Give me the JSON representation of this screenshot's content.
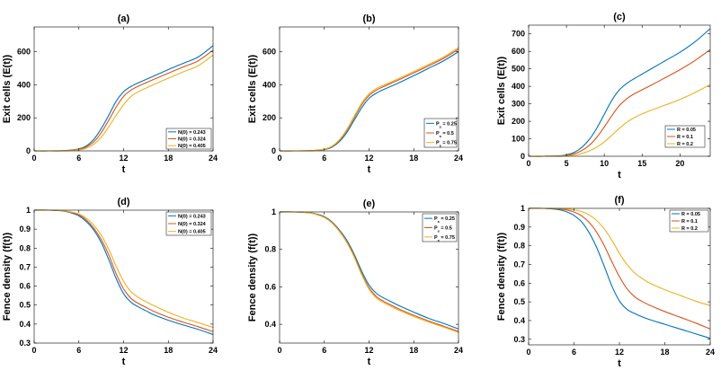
{
  "figure": {
    "title": ""
  },
  "chart_data": [
    {
      "type": "line",
      "title": "(a)",
      "xlabel": "t",
      "ylabel": "Exit cells (E(t))",
      "xlim": [
        0,
        24
      ],
      "ylim": [
        0,
        750
      ],
      "xticks": [
        0,
        6,
        12,
        18,
        24
      ],
      "yticks": [
        0,
        200,
        400,
        600
      ],
      "legend_position": "bottom-right",
      "x": [
        0,
        2,
        4,
        6,
        7,
        8,
        9,
        10,
        11,
        12,
        13,
        14,
        15,
        16,
        18,
        20,
        22,
        24
      ],
      "series": [
        {
          "name": "N(0) = 0.243",
          "color": "#0072BD",
          "values": [
            0,
            0,
            1,
            12,
            30,
            70,
            135,
            215,
            300,
            358,
            390,
            412,
            432,
            452,
            492,
            530,
            568,
            637
          ]
        },
        {
          "name": "N(0) = 0.324",
          "color": "#D95319",
          "values": [
            0,
            0,
            1,
            9,
            24,
            55,
            110,
            185,
            265,
            330,
            368,
            392,
            412,
            432,
            470,
            508,
            545,
            610
          ]
        },
        {
          "name": "N(0) = 0.405",
          "color": "#EDB120",
          "values": [
            0,
            0,
            1,
            6,
            16,
            40,
            82,
            145,
            215,
            280,
            330,
            358,
            380,
            400,
            440,
            478,
            515,
            580
          ]
        }
      ]
    },
    {
      "type": "line",
      "title": "(b)",
      "xlabel": "t",
      "ylabel": "Exit cells (E(t))",
      "xlim": [
        0,
        24
      ],
      "ylim": [
        0,
        750
      ],
      "xticks": [
        0,
        6,
        12,
        18,
        24
      ],
      "yticks": [
        0,
        200,
        400,
        600
      ],
      "legend_position": "bottom-right",
      "x": [
        0,
        2,
        4,
        6,
        7,
        8,
        9,
        10,
        11,
        12,
        13,
        14,
        15,
        16,
        18,
        20,
        22,
        24
      ],
      "series": [
        {
          "name": "P_s = 0.25",
          "color": "#0072BD",
          "values": [
            0,
            0,
            1,
            8,
            22,
            55,
            110,
            185,
            260,
            318,
            350,
            372,
            392,
            412,
            455,
            500,
            545,
            600
          ]
        },
        {
          "name": "P_s = 0.5",
          "color": "#D95319",
          "values": [
            0,
            0,
            1,
            10,
            26,
            62,
            122,
            200,
            278,
            335,
            368,
            390,
            410,
            430,
            472,
            515,
            560,
            615
          ]
        },
        {
          "name": "P_s = 0.75",
          "color": "#EDB120",
          "values": [
            0,
            0,
            1,
            11,
            28,
            66,
            128,
            208,
            288,
            345,
            378,
            398,
            418,
            438,
            480,
            523,
            568,
            625
          ]
        }
      ]
    },
    {
      "type": "line",
      "title": "(c)",
      "xlabel": "t",
      "ylabel": "Exit cells (E(t))",
      "xlim": [
        0,
        24
      ],
      "ylim": [
        0,
        750
      ],
      "xticks": [
        0,
        5,
        10,
        15,
        20
      ],
      "yticks": [
        0,
        100,
        200,
        300,
        400,
        500,
        600,
        700
      ],
      "legend_position": "bottom-right",
      "x": [
        0,
        2,
        4,
        5,
        6,
        7,
        8,
        9,
        10,
        11,
        12,
        13,
        14,
        15,
        16,
        18,
        20,
        22,
        24
      ],
      "series": [
        {
          "name": "R = 0.05",
          "color": "#0072BD",
          "values": [
            0,
            0,
            2,
            8,
            22,
            50,
            95,
            160,
            240,
            320,
            380,
            418,
            445,
            470,
            495,
            545,
            595,
            655,
            730
          ]
        },
        {
          "name": "R = 0.1",
          "color": "#D95319",
          "values": [
            0,
            0,
            1,
            5,
            14,
            32,
            62,
            108,
            168,
            232,
            290,
            330,
            358,
            380,
            402,
            448,
            495,
            548,
            610
          ]
        },
        {
          "name": "R = 0.2",
          "color": "#EDB120",
          "values": [
            0,
            0,
            1,
            3,
            7,
            15,
            30,
            52,
            82,
            120,
            160,
            195,
            222,
            242,
            260,
            292,
            325,
            365,
            410
          ]
        }
      ]
    },
    {
      "type": "line",
      "title": "(d)",
      "xlabel": "t",
      "ylabel": "Fence density (f(t))",
      "xlim": [
        0,
        24
      ],
      "ylim": [
        0.3,
        1.0
      ],
      "xticks": [
        0,
        6,
        12,
        18,
        24
      ],
      "yticks": [
        0.3,
        0.4,
        0.5,
        0.6,
        0.7,
        0.8,
        0.9,
        1
      ],
      "legend_position": "top-right",
      "x": [
        0,
        2,
        4,
        5,
        6,
        7,
        8,
        9,
        10,
        11,
        12,
        13,
        14,
        15,
        16,
        18,
        20,
        22,
        24
      ],
      "series": [
        {
          "name": "N(0) = 0.243",
          "color": "#0072BD",
          "values": [
            1.0,
            1.0,
            0.995,
            0.985,
            0.97,
            0.94,
            0.895,
            0.83,
            0.74,
            0.64,
            0.56,
            0.515,
            0.49,
            0.47,
            0.45,
            0.42,
            0.395,
            0.372,
            0.345
          ]
        },
        {
          "name": "N(0) = 0.324",
          "color": "#D95319",
          "values": [
            1.0,
            1.0,
            0.996,
            0.988,
            0.975,
            0.948,
            0.905,
            0.845,
            0.765,
            0.665,
            0.585,
            0.535,
            0.508,
            0.488,
            0.468,
            0.436,
            0.41,
            0.386,
            0.36
          ]
        },
        {
          "name": "N(0) = 0.405",
          "color": "#EDB120",
          "values": [
            1.0,
            1.0,
            0.997,
            0.99,
            0.98,
            0.958,
            0.92,
            0.868,
            0.795,
            0.705,
            0.625,
            0.57,
            0.54,
            0.518,
            0.498,
            0.462,
            0.432,
            0.408,
            0.382
          ]
        }
      ]
    },
    {
      "type": "line",
      "title": "(e)",
      "xlabel": "t",
      "ylabel": "Fence density (f(t))",
      "xlim": [
        0,
        24
      ],
      "ylim": [
        0.3,
        1.0
      ],
      "xticks": [
        0,
        6,
        12,
        18,
        24
      ],
      "yticks": [
        0.4,
        0.6,
        0.8,
        1
      ],
      "legend_position": "top-right",
      "x": [
        0,
        2,
        4,
        5,
        6,
        7,
        8,
        9,
        10,
        11,
        12,
        13,
        14,
        15,
        16,
        18,
        20,
        22,
        24
      ],
      "series": [
        {
          "name": "P_s = 0.25",
          "color": "#0072BD",
          "values": [
            1.0,
            1.0,
            0.996,
            0.988,
            0.975,
            0.948,
            0.905,
            0.85,
            0.775,
            0.685,
            0.61,
            0.565,
            0.54,
            0.52,
            0.5,
            0.465,
            0.432,
            0.405,
            0.375
          ]
        },
        {
          "name": "P_s = 0.5",
          "color": "#D95319",
          "values": [
            1.0,
            1.0,
            0.995,
            0.986,
            0.972,
            0.944,
            0.9,
            0.842,
            0.765,
            0.672,
            0.595,
            0.548,
            0.522,
            0.502,
            0.482,
            0.448,
            0.418,
            0.39,
            0.362
          ]
        },
        {
          "name": "P_s = 0.75",
          "color": "#EDB120",
          "values": [
            1.0,
            1.0,
            0.995,
            0.985,
            0.97,
            0.942,
            0.897,
            0.838,
            0.76,
            0.666,
            0.588,
            0.54,
            0.515,
            0.495,
            0.475,
            0.442,
            0.412,
            0.385,
            0.356
          ]
        }
      ]
    },
    {
      "type": "line",
      "title": "(f)",
      "xlabel": "t",
      "ylabel": "Fence density (f(t))",
      "xlim": [
        0,
        24
      ],
      "ylim": [
        0.27,
        1.0
      ],
      "xticks": [
        0,
        6,
        12,
        18,
        24
      ],
      "yticks": [
        0.3,
        0.4,
        0.5,
        0.6,
        0.7,
        0.8,
        0.9,
        1
      ],
      "legend_position": "top-right",
      "x": [
        0,
        2,
        4,
        5,
        6,
        7,
        8,
        9,
        10,
        11,
        12,
        13,
        14,
        15,
        16,
        18,
        20,
        22,
        24
      ],
      "series": [
        {
          "name": "R = 0.05",
          "color": "#0072BD",
          "values": [
            1.0,
            1.0,
            0.993,
            0.982,
            0.962,
            0.928,
            0.87,
            0.79,
            0.69,
            0.585,
            0.505,
            0.46,
            0.438,
            0.42,
            0.405,
            0.38,
            0.355,
            0.33,
            0.305
          ]
        },
        {
          "name": "R = 0.1",
          "color": "#D95319",
          "values": [
            1.0,
            1.0,
            0.997,
            0.992,
            0.98,
            0.96,
            0.925,
            0.872,
            0.8,
            0.715,
            0.635,
            0.57,
            0.528,
            0.502,
            0.482,
            0.448,
            0.418,
            0.388,
            0.355
          ]
        },
        {
          "name": "R = 0.2",
          "color": "#EDB120",
          "values": [
            1.0,
            1.0,
            0.999,
            0.997,
            0.992,
            0.983,
            0.965,
            0.935,
            0.89,
            0.83,
            0.76,
            0.7,
            0.655,
            0.625,
            0.6,
            0.565,
            0.535,
            0.505,
            0.48
          ]
        }
      ]
    }
  ]
}
